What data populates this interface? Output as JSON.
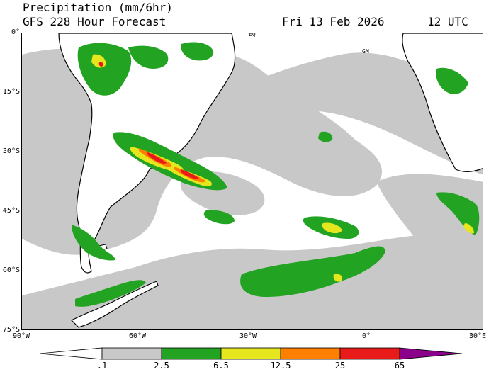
{
  "header": {
    "title": "Precipitation (mm/6hr)",
    "subtitle": "GFS 228 Hour Forecast",
    "date": "Fri 13 Feb 2026",
    "time": "12 UTC"
  },
  "map": {
    "lat_labels": [
      "0°",
      "15°S",
      "30°S",
      "45°S",
      "60°S",
      "75°S"
    ],
    "lon_labels": [
      "90°W",
      "60°W",
      "30°W",
      "0°",
      "30°E"
    ],
    "annotations": [
      "EQ",
      "GM"
    ],
    "colors": {
      "ocean": "#ffffff",
      "gray": "#c8c8c8",
      "green": "#22a322",
      "yellow": "#e6e61e",
      "orange": "#ff7f00",
      "red": "#e81a1a",
      "purple": "#8b008b",
      "coast": "#000000"
    }
  },
  "colorbar": {
    "labels": [
      ".1",
      "2.5",
      "6.5",
      "12.5",
      "25",
      "65"
    ],
    "colors": [
      "#ffffff",
      "#c8c8c8",
      "#22a322",
      "#e6e61e",
      "#ff7f00",
      "#e81a1a",
      "#8b008b"
    ]
  }
}
